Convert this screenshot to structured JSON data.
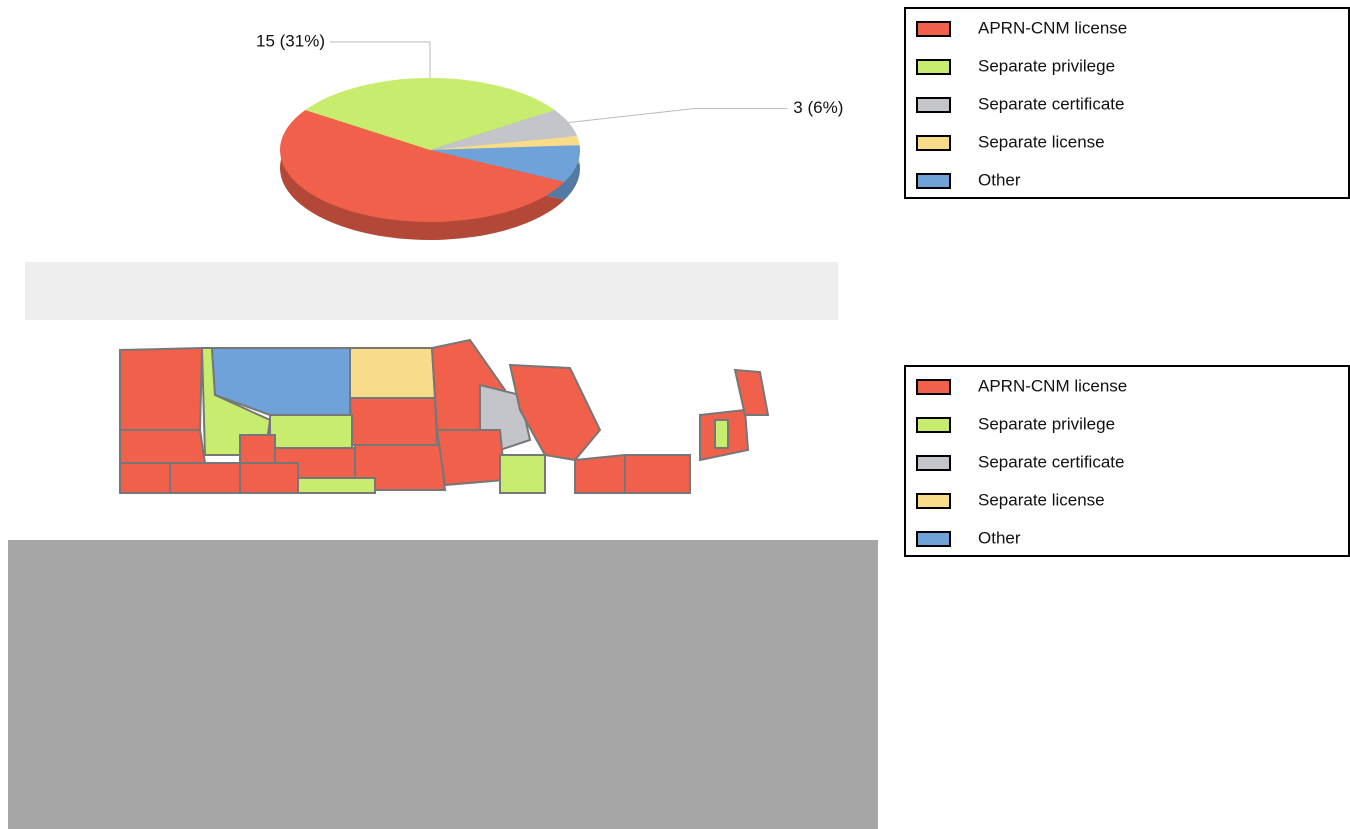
{
  "chart_data": [
    {
      "type": "pie",
      "categories": [
        "APRN-CNM license",
        "Separate privilege",
        "Separate certificate",
        "Separate license",
        "Other"
      ],
      "values": [
        25,
        15,
        3,
        1,
        4
      ],
      "value_labels": [
        null,
        "15 (31%)",
        "3 (6%)",
        null,
        null
      ],
      "colors": [
        "#f0604a",
        "#c8ec6e",
        "#c3c5cb",
        "#f8dc8a",
        "#6fa2d9"
      ],
      "legend": "top-right"
    },
    {
      "type": "map",
      "categories": [
        "APRN-CNM license",
        "Separate privilege",
        "Separate certificate",
        "Separate license",
        "Other"
      ],
      "colors": [
        "#f0604a",
        "#c8ec6e",
        "#c3c5cb",
        "#f8dc8a",
        "#6fa2d9"
      ],
      "legend": "top-right"
    }
  ]
}
